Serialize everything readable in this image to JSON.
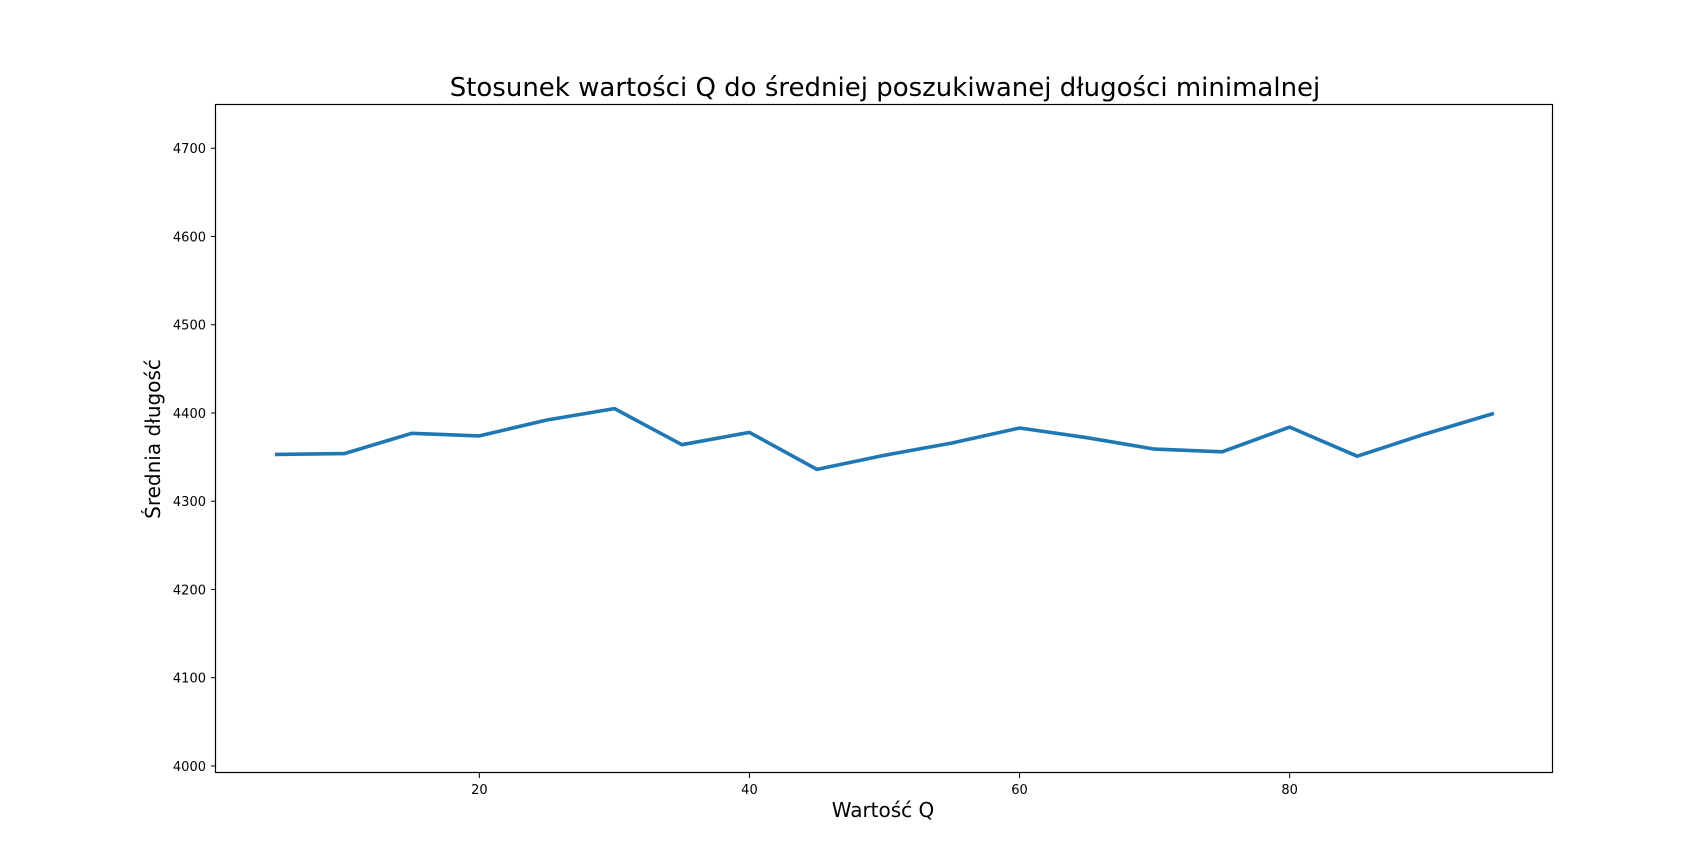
{
  "chart_data": {
    "type": "line",
    "title": "Stosunek wartości Q do średniej poszukiwanej długości minimalnej",
    "xlabel": "Wartość Q",
    "ylabel": "Średnia długość",
    "xlim": [
      0.5,
      99.5
    ],
    "ylim": [
      3992,
      4749
    ],
    "xticks": [
      20,
      40,
      60,
      80
    ],
    "yticks": [
      4000,
      4100,
      4200,
      4300,
      4400,
      4500,
      4600,
      4700
    ],
    "grid": false,
    "series": [
      {
        "color": "#1f77b4",
        "x": [
          5,
          10,
          15,
          20,
          25,
          30,
          35,
          40,
          45,
          50,
          55,
          60,
          65,
          70,
          75,
          80,
          85,
          90,
          95
        ],
        "y": [
          4353,
          4354,
          4377,
          4374,
          4392,
          4405,
          4364,
          4378,
          4336,
          4352,
          4366,
          4383,
          4372,
          4359,
          4356,
          4384,
          4351,
          4376,
          4399
        ]
      }
    ]
  }
}
